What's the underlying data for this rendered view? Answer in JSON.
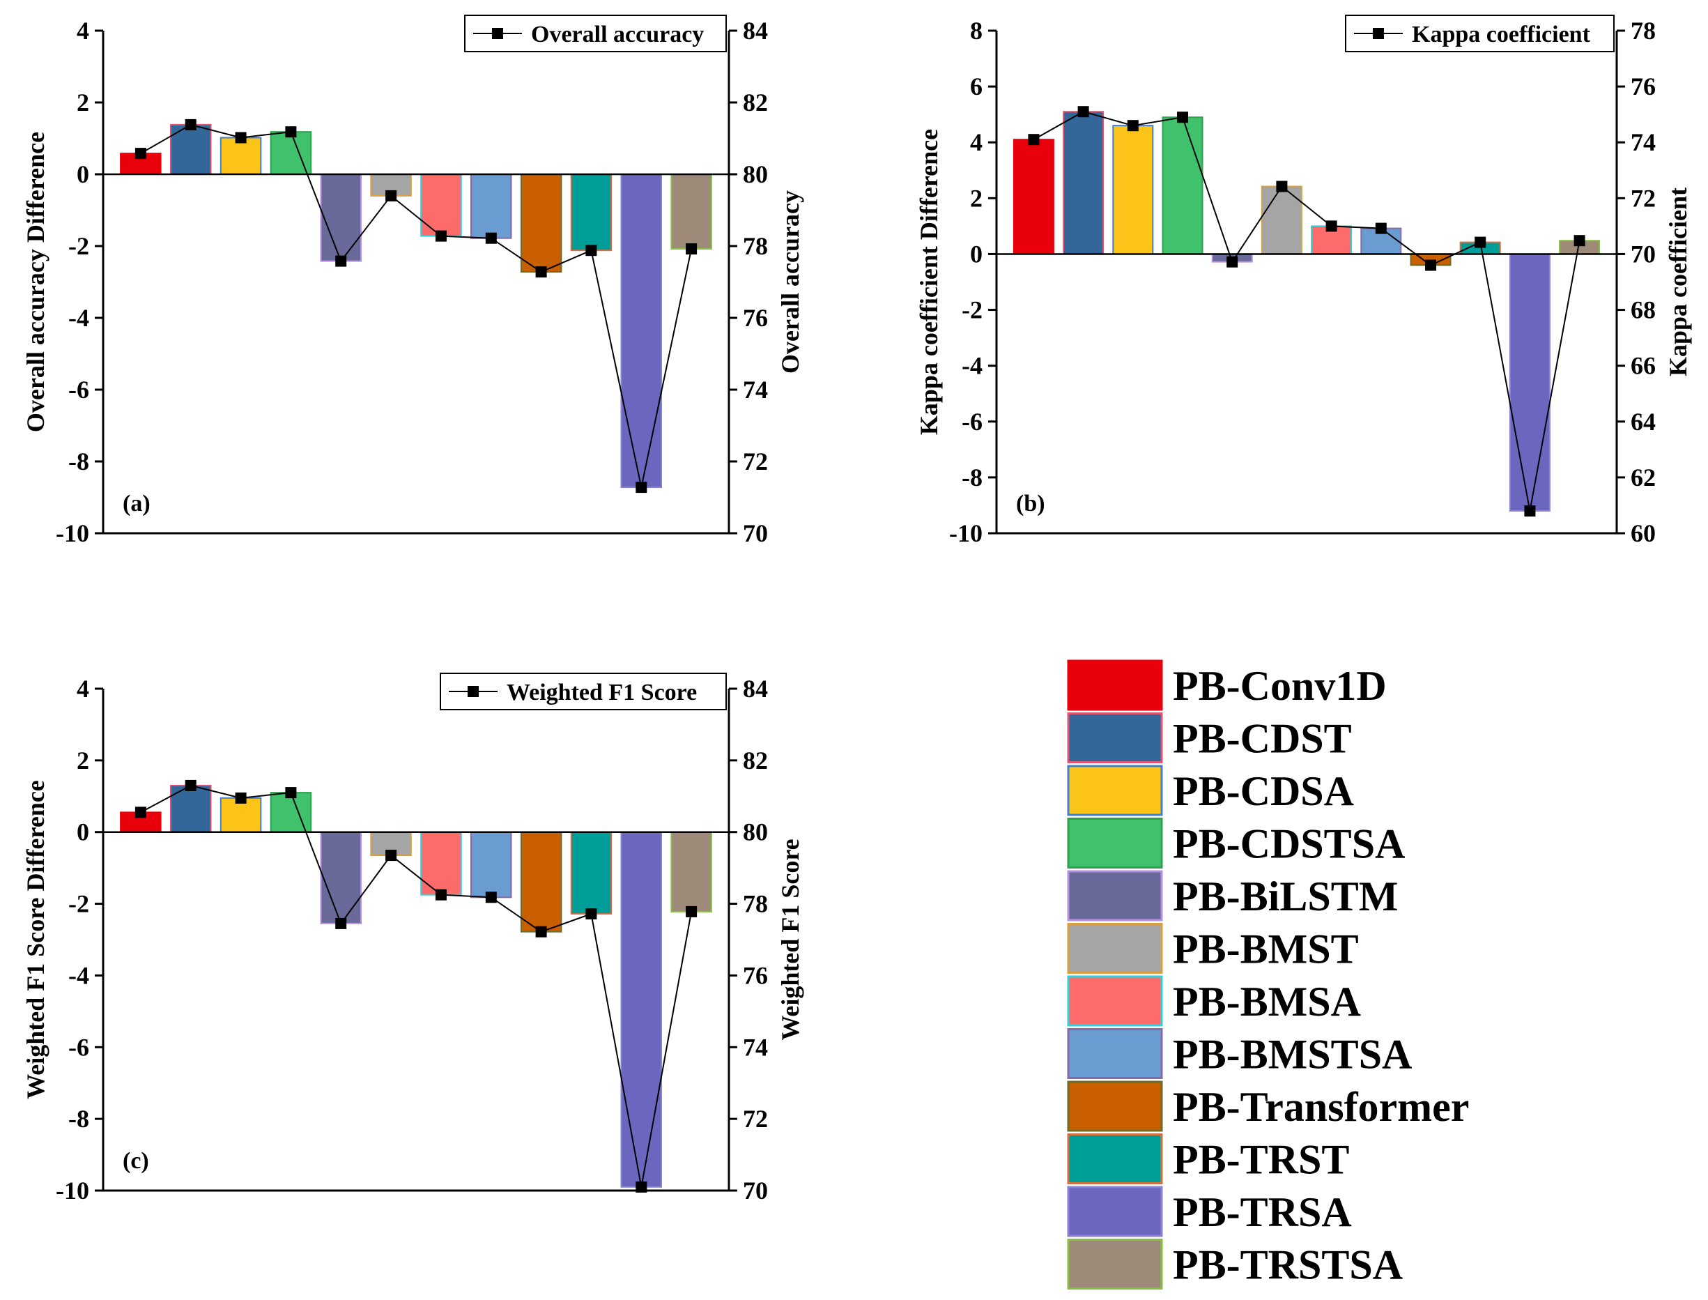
{
  "models": [
    "PB-Conv1D",
    "PB-CDST",
    "PB-CDSA",
    "PB-CDSTSA",
    "PB-BiLSTM",
    "PB-BMST",
    "PB-BMSA",
    "PB-BMSTSA",
    "PB-Transformer",
    "PB-TRST",
    "PB-TRSA",
    "PB-TRSTSA"
  ],
  "colors": {
    "fill": [
      "#e8000b",
      "#336699",
      "#fcc419",
      "#3fc26b",
      "#6a6a9a",
      "#a5a5a5",
      "#fd6b6b",
      "#6a9bd1",
      "#c95f00",
      "#009e99",
      "#6b67bf",
      "#9e8a78"
    ],
    "edge": [
      "#e8000b",
      "#e05570",
      "#3f7fd0",
      "#30a050",
      "#b890e0",
      "#d8a040",
      "#2fd0e0",
      "#886aa8",
      "#6a6e2a",
      "#d07040",
      "#8a83d4",
      "#86c040"
    ],
    "line": "#000000"
  },
  "chart_data": [
    {
      "type": "bar+line",
      "panel_label": "(a)",
      "ylabel_left": "Overall accuracy Difference",
      "ylabel_right": "Overall accuracy",
      "legend": "Overall accuracy",
      "left_ylim": [
        -10,
        4
      ],
      "left_ticks": [
        "4",
        "2",
        "0",
        "-2",
        "-4",
        "-6",
        "-8",
        "-10"
      ],
      "right_ylim": [
        70,
        84
      ],
      "right_ticks": [
        "84",
        "82",
        "80",
        "78",
        "76",
        "74",
        "72",
        "70"
      ],
      "categories": [
        "PB-Conv1D",
        "PB-CDST",
        "PB-CDSA",
        "PB-CDSTSA",
        "PB-BiLSTM",
        "PB-BMST",
        "PB-BMSA",
        "PB-BMSTSA",
        "PB-Transformer",
        "PB-TRST",
        "PB-TRSA",
        "PB-TRSTSA"
      ],
      "bar_values": [
        0.58,
        1.38,
        1.02,
        1.18,
        -2.42,
        -0.6,
        -1.72,
        -1.78,
        -2.72,
        -2.12,
        -8.72,
        -2.08
      ],
      "line_values": [
        80.58,
        81.38,
        81.02,
        81.18,
        77.58,
        79.4,
        78.28,
        78.22,
        77.28,
        77.88,
        71.28,
        77.92
      ]
    },
    {
      "type": "bar+line",
      "panel_label": "(b)",
      "ylabel_left": "Kappa coefficient Difference",
      "ylabel_right": "Kappa coefficient",
      "legend": "Kappa coefficient",
      "left_ylim": [
        -10,
        8
      ],
      "left_ticks": [
        "8",
        "6",
        "4",
        "2",
        "0",
        "-2",
        "-4",
        "-6",
        "-8",
        "-10"
      ],
      "right_ylim": [
        60,
        78
      ],
      "right_ticks": [
        "78",
        "76",
        "74",
        "72",
        "70",
        "68",
        "66",
        "64",
        "62",
        "60"
      ],
      "categories": [
        "PB-Conv1D",
        "PB-CDST",
        "PB-CDSA",
        "PB-CDSTSA",
        "PB-BiLSTM",
        "PB-BMST",
        "PB-BMSA",
        "PB-BMSTSA",
        "PB-Transformer",
        "PB-TRST",
        "PB-TRSA",
        "PB-TRSTSA"
      ],
      "bar_values": [
        4.1,
        5.1,
        4.6,
        4.9,
        -0.28,
        2.42,
        1.0,
        0.92,
        -0.4,
        0.42,
        -9.2,
        0.48
      ],
      "line_values": [
        74.1,
        75.1,
        74.6,
        74.9,
        69.72,
        72.42,
        71.0,
        70.92,
        69.6,
        70.42,
        60.8,
        70.48
      ]
    },
    {
      "type": "bar+line",
      "panel_label": "(c)",
      "ylabel_left": "Weighted F1 Score Difference",
      "ylabel_right": "Weighted F1 Score",
      "legend": "Weighted F1 Score",
      "left_ylim": [
        -10,
        4
      ],
      "left_ticks": [
        "4",
        "2",
        "0",
        "-2",
        "-4",
        "-6",
        "-8",
        "-10"
      ],
      "right_ylim": [
        70,
        84
      ],
      "right_ticks": [
        "84",
        "82",
        "80",
        "78",
        "76",
        "74",
        "72",
        "70"
      ],
      "categories": [
        "PB-Conv1D",
        "PB-CDST",
        "PB-CDSA",
        "PB-CDSTSA",
        "PB-BiLSTM",
        "PB-BMST",
        "PB-BMSA",
        "PB-BMSTSA",
        "PB-Transformer",
        "PB-TRST",
        "PB-TRSA",
        "PB-TRSTSA"
      ],
      "bar_values": [
        0.55,
        1.3,
        0.95,
        1.1,
        -2.55,
        -0.65,
        -1.75,
        -1.82,
        -2.78,
        -2.28,
        -9.9,
        -2.22
      ],
      "line_values": [
        80.55,
        81.3,
        80.95,
        81.1,
        77.45,
        79.35,
        78.25,
        78.18,
        77.22,
        77.72,
        70.1,
        77.78
      ]
    }
  ]
}
